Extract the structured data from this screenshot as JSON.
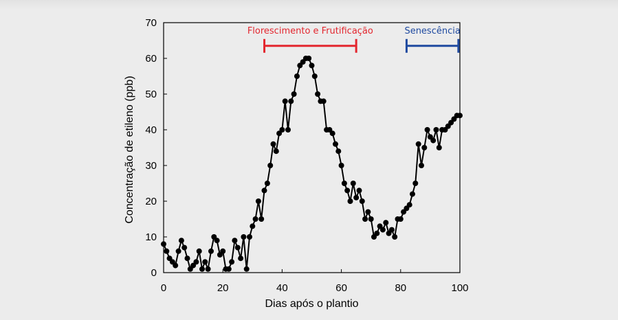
{
  "colors": {
    "background": "#ececec",
    "series": "#000000",
    "phase_flowering": "#e3262e",
    "phase_senescence": "#1f4aa0"
  },
  "chart_data": {
    "type": "line",
    "title": "",
    "xlabel": "Dias após o plantio",
    "ylabel": "Concentração de etileno (ppb)",
    "xlim": [
      0,
      100
    ],
    "ylim": [
      0,
      70
    ],
    "xticks": [
      "0",
      "20",
      "40",
      "60",
      "80",
      "100"
    ],
    "yticks": [
      "0",
      "10",
      "20",
      "30",
      "40",
      "50",
      "60",
      "70"
    ],
    "grid": false,
    "legend": "none",
    "series": [
      {
        "marker": "circle",
        "x": [
          0,
          1,
          2,
          3,
          4,
          5,
          6,
          7,
          8,
          9,
          10,
          11,
          12,
          13,
          14,
          15,
          16,
          17,
          18,
          19,
          20,
          21,
          22,
          23,
          24,
          25,
          26,
          27,
          28,
          29,
          30,
          31,
          32,
          33,
          34,
          35,
          36,
          37,
          38,
          39,
          40,
          41,
          42,
          43,
          44,
          45,
          46,
          47,
          48,
          49,
          50,
          51,
          52,
          53,
          54,
          55,
          56,
          57,
          58,
          59,
          60,
          61,
          62,
          63,
          64,
          65,
          66,
          67,
          68,
          69,
          70,
          71,
          72,
          73,
          74,
          75,
          76,
          77,
          78,
          79,
          80,
          81,
          82,
          83,
          84,
          85,
          86,
          87,
          88,
          89,
          90,
          91,
          92,
          93,
          94,
          95,
          96,
          97,
          98,
          99,
          100
        ],
        "y": [
          8,
          6,
          4,
          3,
          2,
          6,
          9,
          7,
          4,
          1,
          2,
          3,
          6,
          1,
          3,
          1,
          6,
          10,
          9,
          5,
          6,
          1,
          1,
          3,
          9,
          7,
          4,
          10,
          1,
          10,
          13,
          15,
          20,
          15,
          23,
          25,
          30,
          36,
          34,
          39,
          40,
          48,
          40,
          48,
          50,
          55,
          58,
          59,
          60,
          60,
          58,
          55,
          50,
          48,
          48,
          40,
          40,
          39,
          36,
          34,
          30,
          25,
          23,
          20,
          25,
          21,
          23,
          20,
          15,
          17,
          15,
          10,
          11,
          13,
          12,
          14,
          11,
          12,
          10,
          15,
          15,
          17,
          18,
          19,
          22,
          25,
          36,
          30,
          35,
          40,
          38,
          37,
          40,
          35,
          40,
          40,
          41,
          42,
          43,
          44,
          44
        ]
      }
    ],
    "annotations": [
      {
        "label": "Florescimento e Frutificação",
        "x_start": 34,
        "x_end": 65,
        "y": 63.5,
        "color": "#e3262e"
      },
      {
        "label": "Senescência",
        "x_start": 82,
        "x_end": 99.5,
        "y": 63.5,
        "color": "#1f4aa0"
      }
    ]
  }
}
